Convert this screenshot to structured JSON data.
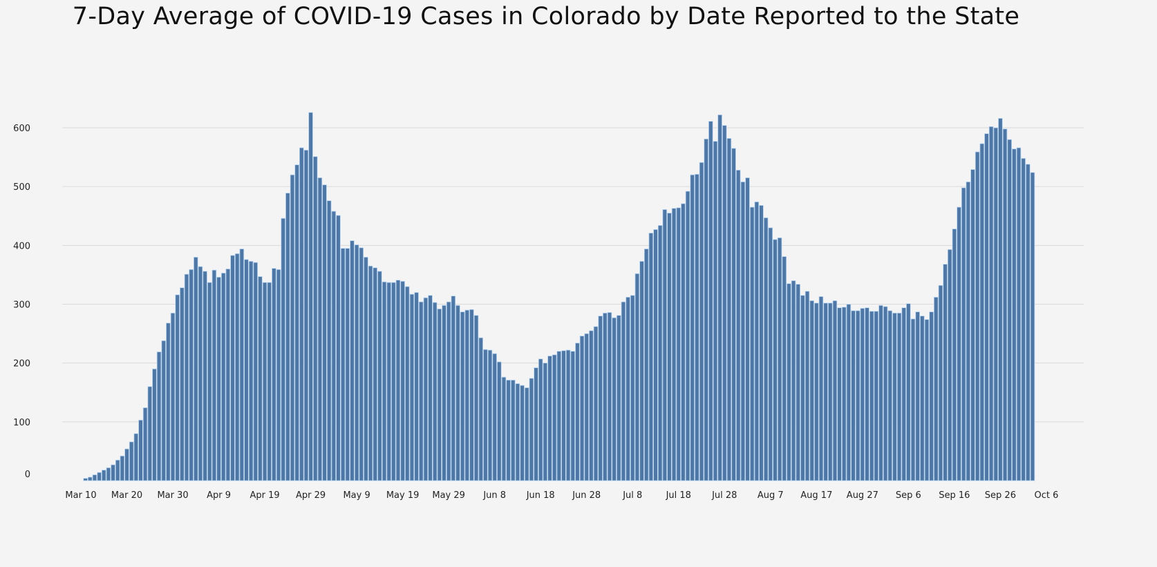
{
  "chart_data": {
    "type": "bar",
    "title": "7-Day Average of COVID-19 Cases in Colorado by Date Reported to the State",
    "xlabel": "",
    "ylabel": "",
    "x_start": "Mar 11",
    "x_interval": "daily",
    "x_ticks": [
      "Mar 10",
      "Mar 20",
      "Mar 30",
      "Apr 9",
      "Apr 19",
      "Apr 29",
      "May 9",
      "May 19",
      "May 29",
      "Jun 8",
      "Jun 18",
      "Jun 28",
      "Jul 8",
      "Jul 18",
      "Jul 28",
      "Aug 7",
      "Aug 17",
      "Aug 27",
      "Sep 6",
      "Sep 16",
      "Sep 26",
      "Oct 6"
    ],
    "y_ticks": [
      0,
      100,
      200,
      300,
      400,
      500,
      600
    ],
    "ylim": [
      0,
      650
    ],
    "grid": true,
    "bar_color": "#4e77a5",
    "bar_edge_color": "#b9d6f2",
    "values": [
      4,
      6,
      10,
      14,
      18,
      22,
      27,
      35,
      42,
      54,
      66,
      80,
      103,
      124,
      160,
      190,
      219,
      238,
      268,
      285,
      316,
      328,
      351,
      359,
      380,
      364,
      356,
      337,
      358,
      346,
      353,
      360,
      383,
      386,
      394,
      376,
      373,
      371,
      347,
      337,
      337,
      361,
      359,
      446,
      489,
      520,
      537,
      566,
      562,
      626,
      551,
      515,
      503,
      476,
      458,
      451,
      395,
      395,
      408,
      401,
      396,
      380,
      365,
      362,
      356,
      338,
      337,
      337,
      341,
      339,
      330,
      317,
      320,
      304,
      311,
      315,
      303,
      292,
      298,
      304,
      314,
      298,
      287,
      290,
      291,
      281,
      243,
      223,
      222,
      216,
      202,
      176,
      171,
      171,
      165,
      162,
      158,
      174,
      192,
      207,
      200,
      212,
      214,
      220,
      221,
      222,
      220,
      234,
      246,
      250,
      255,
      262,
      280,
      285,
      286,
      277,
      281,
      304,
      312,
      315,
      352,
      373,
      394,
      421,
      427,
      434,
      461,
      455,
      463,
      464,
      471,
      492,
      520,
      521,
      541,
      581,
      611,
      577,
      622,
      604,
      582,
      565,
      528,
      508,
      515,
      465,
      474,
      468,
      447,
      430,
      410,
      413,
      381,
      335,
      340,
      334,
      315,
      322,
      306,
      302,
      313,
      302,
      302,
      306,
      294,
      295,
      300,
      289,
      289,
      293,
      294,
      288,
      288,
      298,
      296,
      289,
      285,
      285,
      294,
      301,
      275,
      287,
      280,
      274,
      287,
      312,
      332,
      368,
      393,
      428,
      465,
      498,
      508,
      529,
      559,
      573,
      590,
      602,
      600,
      616,
      598,
      580,
      564,
      566,
      548,
      538,
      524
    ]
  }
}
